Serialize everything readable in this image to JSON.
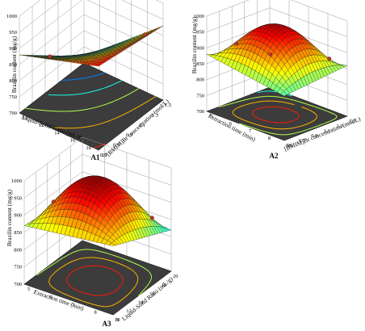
{
  "chart_data": [
    {
      "type": "surface",
      "panel_label": "A1",
      "zlabel": "Brazilin content (mg/g)",
      "z_ticks": [
        "700",
        "750",
        "800",
        "850",
        "900",
        "950",
        "1000"
      ],
      "zlim": [
        700,
        1000
      ],
      "axis_a": {
        "label": "Liquid-Solid Ratio (mL/g)",
        "ticks": [
          "10",
          "12",
          "14",
          "16",
          "18",
          "20"
        ],
        "range": [
          10,
          20
        ]
      },
      "axis_b": {
        "label": "[BMIM]Br concentration (mol/L)",
        "ticks": [
          "0.5",
          "0.7",
          "0.9",
          "1.1",
          "1.3",
          "1.5"
        ],
        "range": [
          0.5,
          1.5
        ]
      },
      "surface_corners": {
        "a_low_b_low": 960,
        "a_low_b_high": 930,
        "a_high_b_high": 720,
        "a_high_b_low": 880,
        "center": 860
      },
      "design_points_visible": 2,
      "floor_contours": true
    },
    {
      "type": "surface",
      "panel_label": "A2",
      "zlabel": "Brazilin content (mg/g)",
      "z_ticks": [
        "700",
        "750",
        "800",
        "850",
        "900",
        "950",
        "1000"
      ],
      "zlim": [
        700,
        1000
      ],
      "axis_a": {
        "label": "Extraction time (min)",
        "ticks": [
          "5",
          "6",
          "7",
          "8",
          "9"
        ],
        "range": [
          5,
          9
        ]
      },
      "axis_b": {
        "label": "[BMIM]Br concentration (mol/L)",
        "ticks": [
          "0.5",
          "0.7",
          "0.9",
          "1.1",
          "1.3",
          "1.5"
        ],
        "range": [
          0.5,
          1.5
        ]
      },
      "surface_corners": {
        "a_low_b_low": 840,
        "a_low_b_high": 860,
        "a_high_b_high": 800,
        "a_high_b_low": 880,
        "center": 980
      },
      "design_points_visible": 3,
      "floor_contours": true
    },
    {
      "type": "surface",
      "panel_label": "A3",
      "zlabel": "Brazilin content (mg/g)",
      "z_ticks": [
        "700",
        "750",
        "800",
        "850",
        "900",
        "950",
        "1000"
      ],
      "zlim": [
        700,
        1000
      ],
      "axis_a": {
        "label": "Extraction time (min)",
        "ticks": [
          "5",
          "6",
          "7",
          "8",
          "9"
        ],
        "range": [
          5,
          9
        ]
      },
      "axis_b": {
        "label": "Liquid-Solid Ratio (mL/g)",
        "ticks": [
          "10",
          "12",
          "14",
          "16",
          "18",
          "20"
        ],
        "range": [
          10,
          20
        ]
      },
      "surface_corners": {
        "a_low_b_low": 900,
        "a_low_b_high": 820,
        "a_high_b_high": 840,
        "a_high_b_low": 870,
        "center": 990
      },
      "design_points_visible": 2,
      "floor_contours": true
    }
  ]
}
